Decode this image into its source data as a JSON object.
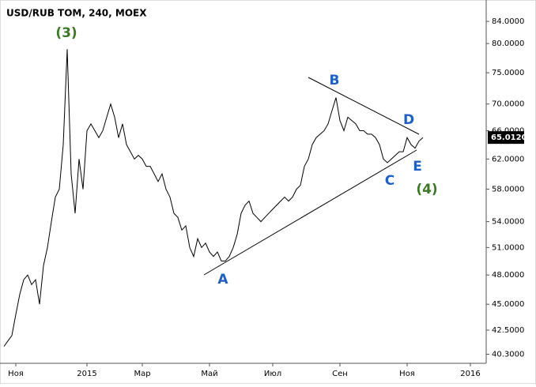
{
  "chart_data": {
    "type": "line",
    "title": "USD/RUB TOM, 240, MOEX",
    "log_scale": true,
    "color": "#000000",
    "categories": [
      null,
      null,
      null,
      "Ноя",
      null,
      null,
      null,
      null,
      null,
      null,
      null,
      null,
      null,
      null,
      null,
      null,
      null,
      null,
      null,
      null,
      null,
      "2015",
      null,
      null,
      null,
      null,
      null,
      null,
      null,
      null,
      null,
      null,
      null,
      null,
      null,
      "Мар",
      null,
      null,
      null,
      null,
      null,
      null,
      null,
      null,
      null,
      null,
      null,
      null,
      null,
      null,
      null,
      null,
      "Май",
      null,
      null,
      null,
      null,
      null,
      null,
      null,
      null,
      null,
      null,
      null,
      null,
      null,
      null,
      null,
      "Июл",
      null,
      null,
      null,
      null,
      null,
      null,
      null,
      null,
      null,
      null,
      null,
      null,
      null,
      null,
      null,
      null,
      "Сен",
      null,
      null,
      null,
      null,
      null,
      null,
      null,
      null,
      null,
      null,
      null,
      null,
      null,
      null,
      null,
      null,
      "Ноя",
      null,
      null,
      null,
      null,
      null,
      null,
      null,
      null,
      null,
      null,
      null,
      null,
      null,
      null,
      null,
      "2016"
    ],
    "values": [
      41,
      41.5,
      42,
      44,
      46,
      47.5,
      48,
      47,
      47.5,
      45,
      49,
      51,
      54,
      57,
      58,
      64,
      79,
      60,
      55,
      62,
      58,
      66,
      67,
      66,
      65,
      66,
      68,
      70,
      68,
      65,
      67,
      64,
      63,
      62,
      62.5,
      62,
      61,
      61,
      60,
      59,
      60,
      58,
      57,
      55,
      54.5,
      53,
      53.5,
      51,
      50,
      52,
      51,
      51.5,
      50.5,
      50,
      50.5,
      49.5,
      49.5,
      50,
      51,
      52.5,
      55,
      56,
      56.5,
      55,
      54.5,
      54,
      54.5,
      55,
      55.5,
      56,
      56.5,
      57,
      56.5,
      57,
      58,
      58.5,
      61,
      62,
      64,
      65,
      65.5,
      66,
      67,
      69,
      71,
      67.5,
      66,
      68,
      67.5,
      67,
      66,
      66,
      65.5,
      65.5,
      65,
      64,
      62,
      61.5,
      62,
      62.5,
      63,
      63,
      65,
      64,
      63.5,
      64.5,
      65,
      null,
      null,
      null,
      null,
      null,
      null,
      null,
      null,
      null,
      null,
      null,
      null
    ],
    "ylim": [
      39.5,
      87.3
    ],
    "yticks": [
      {
        "value": 40.3,
        "label": "40.3000"
      },
      {
        "value": 42.5,
        "label": "42.5000"
      },
      {
        "value": 45,
        "label": "45.0000"
      },
      {
        "value": 48,
        "label": "48.0000"
      },
      {
        "value": 51,
        "label": "51.0000"
      },
      {
        "value": 54,
        "label": "54.0000"
      },
      {
        "value": 58,
        "label": "58.0000"
      },
      {
        "value": 62,
        "label": "62.0000"
      },
      {
        "value": 66,
        "label": "66.0000"
      },
      {
        "value": 70,
        "label": "70.0000"
      },
      {
        "value": 75,
        "label": "75.0000"
      },
      {
        "value": 80,
        "label": "80.0000"
      },
      {
        "value": 84,
        "label": "84.0000"
      }
    ],
    "last_price": {
      "value": 65.012,
      "label": "65.0120"
    },
    "annotations": [
      "(3)",
      "B",
      "D",
      "E",
      "C",
      "(4)",
      "A"
    ]
  }
}
